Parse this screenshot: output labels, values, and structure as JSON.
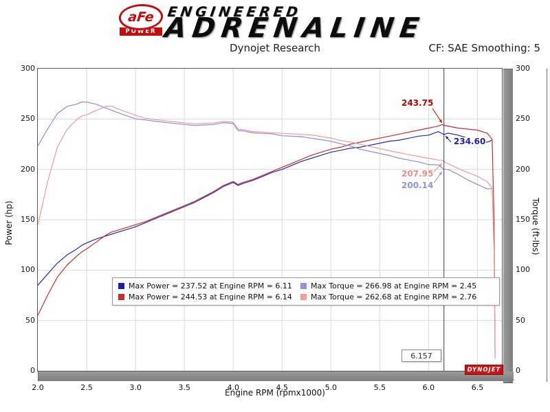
{
  "header": {
    "logo": {
      "afe": "aFe",
      "power": "POWER"
    },
    "brand_line1": "ENGINEERED",
    "brand_line2": "ADRENALINE",
    "subtitle": "Dynojet Research",
    "smoothing_label": "CF: SAE Smoothing: 5"
  },
  "watermark": "DYNOJET",
  "chart_data": {
    "type": "line",
    "title": "Dynojet Research",
    "xlabel": "Engine RPM (rpmx1000)",
    "ylabel_left": "Power (hp)",
    "ylabel_right": "Torque (ft-lbs)",
    "xlim": [
      2.0,
      6.75
    ],
    "ylim": [
      0,
      300
    ],
    "grid": true,
    "x_ticks": [
      "2.0",
      "2.5",
      "3.0",
      "3.5",
      "4.0",
      "4.5",
      "5.0",
      "5.5",
      "6.0",
      "6.5"
    ],
    "y_ticks": [
      "0",
      "50",
      "100",
      "150",
      "200",
      "250",
      "300"
    ],
    "cursor": {
      "x": 6.157,
      "label": "6.157"
    },
    "annotations": [
      {
        "value": "243.75",
        "color": "#c40000",
        "series": "power-tuned"
      },
      {
        "value": "234.60",
        "color": "#1f1fae",
        "series": "power-baseline"
      },
      {
        "value": "207.95",
        "color": "#ef8c8c",
        "series": "torque-tuned"
      },
      {
        "value": "200.14",
        "color": "#9393dc",
        "series": "torque-baseline"
      }
    ],
    "legend": [
      {
        "color": "#1f1fae",
        "label": "Max Power = 237.52 at Engine RPM = 6.11"
      },
      {
        "color": "#9393dc",
        "label": "Max Torque = 266.98 at Engine RPM = 2.45"
      },
      {
        "color": "#c62f2f",
        "label": "Max Power = 244.53 at Engine RPM = 6.14"
      },
      {
        "color": "#f49c9c",
        "label": "Max Torque = 262.68 at Engine RPM = 2.76"
      }
    ],
    "series": [
      {
        "name": "power-baseline",
        "color": "#2a2ab0",
        "axis": "left",
        "x": [
          2.0,
          2.1,
          2.2,
          2.3,
          2.4,
          2.45,
          2.5,
          2.6,
          2.7,
          2.8,
          2.9,
          3.0,
          3.1,
          3.2,
          3.3,
          3.4,
          3.5,
          3.6,
          3.7,
          3.8,
          3.9,
          4.0,
          4.05,
          4.1,
          4.2,
          4.3,
          4.4,
          4.5,
          4.6,
          4.7,
          4.8,
          4.9,
          5.0,
          5.1,
          5.2,
          5.3,
          5.4,
          5.5,
          5.6,
          5.7,
          5.8,
          5.9,
          6.0,
          6.1,
          6.157,
          6.2,
          6.3,
          6.4,
          6.5,
          6.6,
          6.65
        ],
        "y": [
          85,
          96,
          107,
          115,
          121,
          124.6,
          127,
          131,
          134,
          137,
          140,
          143,
          147,
          151,
          155,
          159,
          163,
          167,
          172,
          177,
          183,
          187,
          184,
          186,
          189,
          193,
          197,
          200,
          204,
          208,
          211,
          214,
          217,
          219,
          221,
          222,
          224,
          226,
          228,
          229,
          231,
          233,
          234,
          237.5,
          234.6,
          236,
          234,
          231,
          229,
          227,
          229
        ]
      },
      {
        "name": "power-tuned",
        "color": "#c62f2f",
        "axis": "left",
        "x": [
          2.0,
          2.1,
          2.2,
          2.3,
          2.4,
          2.45,
          2.5,
          2.6,
          2.7,
          2.76,
          2.8,
          2.9,
          3.0,
          3.1,
          3.2,
          3.3,
          3.4,
          3.5,
          3.6,
          3.7,
          3.8,
          3.9,
          4.0,
          4.05,
          4.1,
          4.2,
          4.3,
          4.4,
          4.5,
          4.6,
          4.7,
          4.8,
          4.9,
          5.0,
          5.1,
          5.2,
          5.3,
          5.4,
          5.5,
          5.6,
          5.7,
          5.8,
          5.9,
          6.0,
          6.1,
          6.14,
          6.157,
          6.2,
          6.3,
          6.4,
          6.5,
          6.6,
          6.65,
          6.67,
          6.68
        ],
        "y": [
          55,
          75,
          93,
          105,
          114,
          118,
          121,
          128,
          135,
          138,
          139,
          142,
          145,
          148,
          152,
          156,
          160,
          164,
          168,
          173,
          178,
          184,
          188,
          185,
          187,
          190,
          194,
          198,
          202,
          206,
          210,
          214,
          217,
          220,
          222,
          225,
          227,
          229,
          231,
          233,
          235,
          237,
          239,
          241,
          243,
          244.5,
          243.75,
          243,
          241,
          240,
          239,
          236,
          230,
          150,
          15
        ]
      },
      {
        "name": "torque-baseline",
        "color": "#8d8dd8",
        "axis": "right",
        "x": [
          2.0,
          2.1,
          2.2,
          2.3,
          2.4,
          2.45,
          2.5,
          2.6,
          2.7,
          2.8,
          2.9,
          3.0,
          3.1,
          3.2,
          3.3,
          3.4,
          3.5,
          3.6,
          3.7,
          3.8,
          3.9,
          4.0,
          4.05,
          4.1,
          4.2,
          4.3,
          4.4,
          4.5,
          4.6,
          4.7,
          4.8,
          4.9,
          5.0,
          5.1,
          5.2,
          5.3,
          5.4,
          5.5,
          5.6,
          5.7,
          5.8,
          5.9,
          6.0,
          6.1,
          6.157,
          6.2,
          6.3,
          6.4,
          6.5,
          6.6,
          6.65
        ],
        "y": [
          223.2,
          240.1,
          255.4,
          262.6,
          264.8,
          267.0,
          266.8,
          264.6,
          260.7,
          257.0,
          253.5,
          250.3,
          249.1,
          247.8,
          246.7,
          245.6,
          244.6,
          243.6,
          244.1,
          244.6,
          246.4,
          245.5,
          238.6,
          238.3,
          236.3,
          235.7,
          235.2,
          233.4,
          232.9,
          232.4,
          230.9,
          229.4,
          227.9,
          225.5,
          223.2,
          220.0,
          217.9,
          215.8,
          213.8,
          211.0,
          209.2,
          207.4,
          204.8,
          204.5,
          200.1,
          199.9,
          195.1,
          189.6,
          185.0,
          180.6,
          180.9
        ]
      },
      {
        "name": "torque-tuned",
        "color": "#f29b9b",
        "axis": "right",
        "x": [
          2.0,
          2.1,
          2.2,
          2.3,
          2.4,
          2.45,
          2.5,
          2.6,
          2.7,
          2.76,
          2.8,
          2.9,
          3.0,
          3.1,
          3.2,
          3.3,
          3.4,
          3.5,
          3.6,
          3.7,
          3.8,
          3.9,
          4.0,
          4.05,
          4.1,
          4.2,
          4.3,
          4.4,
          4.5,
          4.6,
          4.7,
          4.8,
          4.9,
          5.0,
          5.1,
          5.2,
          5.3,
          5.4,
          5.5,
          5.6,
          5.7,
          5.8,
          5.9,
          6.0,
          6.1,
          6.14,
          6.157,
          6.2,
          6.3,
          6.4,
          6.5,
          6.6,
          6.65,
          6.67,
          6.68
        ],
        "y": [
          144.4,
          187.6,
          222.0,
          239.8,
          249.5,
          253.0,
          254.2,
          258.6,
          262.6,
          262.68,
          260.7,
          257.2,
          253.8,
          250.8,
          249.5,
          248.3,
          247.2,
          246.1,
          245.1,
          245.6,
          246.0,
          247.8,
          246.8,
          239.9,
          239.5,
          237.6,
          237.0,
          236.3,
          235.8,
          235.2,
          234.7,
          234.2,
          232.6,
          231.1,
          228.6,
          227.3,
          224.9,
          222.7,
          220.6,
          218.5,
          216.5,
          214.6,
          212.8,
          211.0,
          209.2,
          209.1,
          207.95,
          205.8,
          200.9,
          196.9,
          193.1,
          187.8,
          181.6,
          118.1,
          11.8
        ]
      }
    ]
  }
}
